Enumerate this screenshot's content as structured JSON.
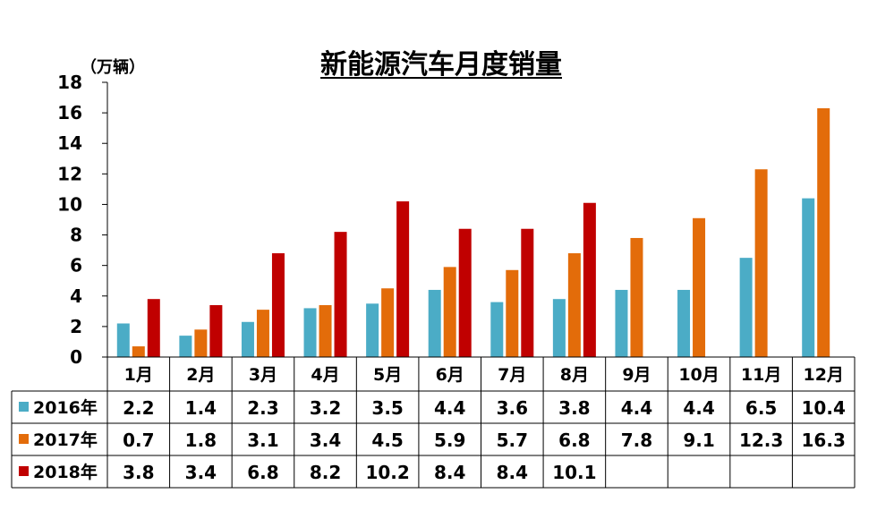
{
  "chart_data": {
    "type": "bar",
    "title": "新能源汽车月度销量",
    "unit_label": "（万辆）",
    "ylim": [
      0,
      18
    ],
    "yticks": [
      "0",
      "2",
      "4",
      "6",
      "8",
      "10",
      "12",
      "14",
      "16",
      "18"
    ],
    "categories": [
      "1月",
      "2月",
      "3月",
      "4月",
      "5月",
      "6月",
      "7月",
      "8月",
      "9月",
      "10月",
      "11月",
      "12月"
    ],
    "series": [
      {
        "name": "2016年",
        "color": "#4bacc6",
        "values": [
          2.2,
          1.4,
          2.3,
          3.2,
          3.5,
          4.4,
          3.6,
          3.8,
          4.4,
          4.4,
          6.5,
          10.4
        ],
        "labels": [
          "2.2",
          "1.4",
          "2.3",
          "3.2",
          "3.5",
          "4.4",
          "3.6",
          "3.8",
          "4.4",
          "4.4",
          "6.5",
          "10.4"
        ]
      },
      {
        "name": "2017年",
        "color": "#e36c0a",
        "values": [
          0.7,
          1.8,
          3.1,
          3.4,
          4.5,
          5.9,
          5.7,
          6.8,
          7.8,
          9.1,
          12.3,
          16.3
        ],
        "labels": [
          "0.7",
          "1.8",
          "3.1",
          "3.4",
          "4.5",
          "5.9",
          "5.7",
          "6.8",
          "7.8",
          "9.1",
          "12.3",
          "16.3"
        ]
      },
      {
        "name": "2018年",
        "color": "#c00000",
        "values": [
          3.8,
          3.4,
          6.8,
          8.2,
          10.2,
          8.4,
          8.4,
          10.1,
          null,
          null,
          null,
          null
        ],
        "labels": [
          "3.8",
          "3.4",
          "6.8",
          "8.2",
          "10.2",
          "8.4",
          "8.4",
          "10.1",
          "",
          "",
          "",
          ""
        ]
      }
    ]
  }
}
